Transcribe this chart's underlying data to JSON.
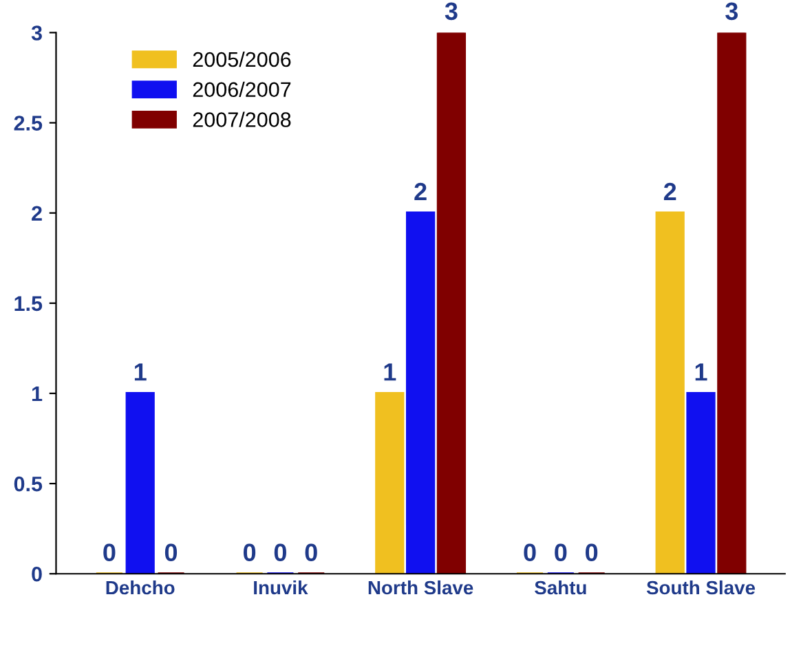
{
  "chart_data": {
    "type": "bar",
    "categories": [
      "Dehcho",
      "Inuvik",
      "North Slave",
      "Sahtu",
      "South Slave"
    ],
    "series": [
      {
        "name": "2005/2006",
        "color": "#f0c020",
        "values": [
          0,
          0,
          1,
          0,
          2
        ]
      },
      {
        "name": "2006/2007",
        "color": "#1010f0",
        "values": [
          1,
          0,
          2,
          0,
          1
        ]
      },
      {
        "name": "2007/2008",
        "color": "#800000",
        "values": [
          0,
          0,
          3,
          0,
          3
        ]
      }
    ],
    "ylim": [
      0,
      3
    ],
    "yticks": [
      0,
      0.5,
      1,
      1.5,
      2,
      2.5,
      3
    ],
    "grid": false,
    "legend": "top left",
    "data_labels": true
  }
}
